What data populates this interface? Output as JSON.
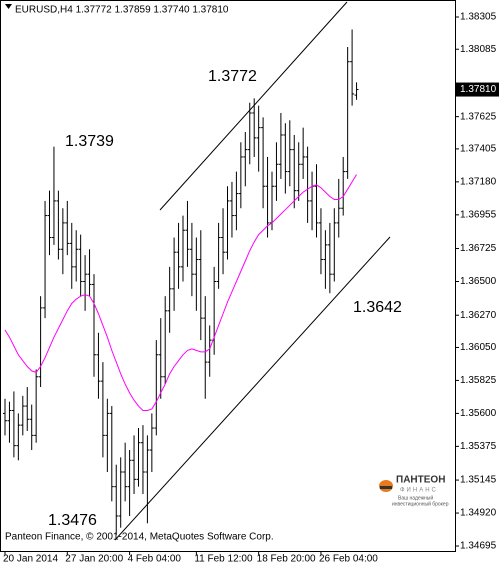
{
  "chart_data": {
    "type": "ohlc",
    "title": "EURUSD,H4  1.37772 1.37859 1.37740 1.37810",
    "footer": "Panteon Finance, © 2001-2014, MetaQuotes Software Corp.",
    "annotations": [
      "1.3772",
      "1.3739",
      "1.3476",
      "1.3642"
    ],
    "logo": {
      "name": "ПАНТЕОН",
      "sub": "ФИНАНС",
      "slogan": [
        "Ваш надежный",
        "инвестиционный брокер"
      ]
    },
    "categories": [
      "20 Jan 2014",
      null,
      null,
      null,
      null,
      null,
      null,
      null,
      null,
      null,
      null,
      null,
      null,
      null,
      "27 Jan 20:00",
      null,
      null,
      null,
      null,
      null,
      null,
      null,
      null,
      null,
      null,
      null,
      null,
      null,
      "4 Feb 04:00",
      null,
      null,
      null,
      null,
      null,
      null,
      null,
      null,
      null,
      null,
      null,
      null,
      null,
      null,
      "11 Feb 12:00",
      null,
      null,
      null,
      null,
      null,
      null,
      null,
      null,
      null,
      null,
      null,
      null,
      null,
      "18 Feb 20:00",
      null,
      null,
      null,
      null,
      null,
      null,
      null,
      null,
      null,
      null,
      null,
      null,
      null,
      "26 Feb 04:00",
      null,
      null,
      null,
      null,
      null,
      null,
      null,
      null
    ],
    "color": "#000000",
    "open": [
      1.356,
      1.3555,
      1.3562,
      1.3538,
      1.3552,
      1.3565,
      1.3556,
      1.3545,
      1.3585,
      1.3632,
      1.3695,
      1.368,
      1.3705,
      1.3672,
      1.369,
      1.3676,
      1.366,
      1.3672,
      1.365,
      1.3655,
      1.3648,
      1.36,
      1.3582,
      1.3545,
      1.356,
      1.351,
      1.349,
      1.352,
      1.351,
      1.3528,
      1.3515,
      1.354,
      1.352,
      1.3535,
      1.355,
      1.36,
      1.3585,
      1.363,
      1.3645,
      1.367,
      1.366,
      1.3685,
      1.3672,
      1.3655,
      1.3665,
      1.3625,
      1.3595,
      1.361,
      1.365,
      1.368,
      1.367,
      1.3705,
      1.3695,
      1.371,
      1.3735,
      1.374,
      1.3765,
      1.3748,
      1.3755,
      1.3715,
      1.369,
      1.3715,
      1.373,
      1.375,
      1.3725,
      1.374,
      1.3712,
      1.373,
      1.3735,
      1.3705,
      1.3715,
      1.369,
      1.3665,
      1.3675,
      1.3655,
      1.369,
      1.37,
      1.3725,
      1.38,
      1.37772
    ],
    "high": [
      1.357,
      1.3568,
      1.3575,
      1.356,
      1.3572,
      1.3578,
      1.3566,
      1.359,
      1.364,
      1.3705,
      1.3712,
      1.3742,
      1.3712,
      1.37,
      1.3705,
      1.369,
      1.3685,
      1.3682,
      1.3668,
      1.3672,
      1.3655,
      1.3615,
      1.3595,
      1.357,
      1.3565,
      1.3525,
      1.353,
      1.354,
      1.3535,
      1.3545,
      1.355,
      1.3552,
      1.3545,
      1.356,
      1.361,
      1.3625,
      1.364,
      1.366,
      1.368,
      1.369,
      1.3695,
      1.3705,
      1.369,
      1.368,
      1.3685,
      1.364,
      1.362,
      1.366,
      1.369,
      1.37,
      1.3715,
      1.3718,
      1.3725,
      1.3745,
      1.3752,
      1.3772,
      1.3775,
      1.377,
      1.3762,
      1.3735,
      1.3725,
      1.3745,
      1.3765,
      1.3758,
      1.376,
      1.375,
      1.3745,
      1.3755,
      1.3742,
      1.3725,
      1.373,
      1.37,
      1.3685,
      1.369,
      1.37,
      1.372,
      1.3735,
      1.381,
      1.3822,
      1.37859
    ],
    "low": [
      1.3545,
      1.354,
      1.353,
      1.3528,
      1.3545,
      1.3548,
      1.3535,
      1.354,
      1.3578,
      1.3625,
      1.3668,
      1.3675,
      1.3665,
      1.3655,
      1.3668,
      1.3645,
      1.365,
      1.364,
      1.363,
      1.364,
      1.3585,
      1.357,
      1.353,
      1.352,
      1.35,
      1.3477,
      1.3482,
      1.35,
      1.349,
      1.3505,
      1.351,
      1.3505,
      1.3485,
      1.352,
      1.3545,
      1.357,
      1.358,
      1.3615,
      1.363,
      1.3645,
      1.365,
      1.366,
      1.364,
      1.363,
      1.361,
      1.357,
      1.3585,
      1.36,
      1.3645,
      1.3655,
      1.3665,
      1.368,
      1.3685,
      1.37,
      1.3715,
      1.373,
      1.3735,
      1.3725,
      1.37,
      1.368,
      1.3685,
      1.3705,
      1.372,
      1.371,
      1.3715,
      1.37,
      1.3705,
      1.372,
      1.369,
      1.3685,
      1.368,
      1.3655,
      1.3645,
      1.3642,
      1.365,
      1.368,
      1.3695,
      1.372,
      1.377,
      1.3774
    ],
    "close": [
      1.3555,
      1.3562,
      1.3538,
      1.3552,
      1.3565,
      1.3556,
      1.3545,
      1.3585,
      1.3632,
      1.3695,
      1.368,
      1.3705,
      1.3672,
      1.369,
      1.3676,
      1.366,
      1.3672,
      1.365,
      1.3655,
      1.3648,
      1.36,
      1.3582,
      1.3545,
      1.356,
      1.351,
      1.349,
      1.352,
      1.351,
      1.3528,
      1.3515,
      1.354,
      1.352,
      1.3535,
      1.355,
      1.36,
      1.3585,
      1.363,
      1.3645,
      1.367,
      1.366,
      1.3685,
      1.3672,
      1.3655,
      1.3665,
      1.3625,
      1.3595,
      1.361,
      1.365,
      1.368,
      1.367,
      1.3705,
      1.3695,
      1.371,
      1.3735,
      1.374,
      1.3765,
      1.3748,
      1.3755,
      1.3715,
      1.369,
      1.3715,
      1.373,
      1.375,
      1.3725,
      1.374,
      1.3712,
      1.373,
      1.3735,
      1.3705,
      1.3715,
      1.369,
      1.3665,
      1.3675,
      1.3655,
      1.369,
      1.37,
      1.3725,
      1.38,
      1.3778,
      1.3781
    ],
    "ma": {
      "color": "#ff00ff",
      "values": [
        1.3617,
        1.3612,
        1.3606,
        1.36,
        1.3596,
        1.3592,
        1.3589,
        1.3588,
        1.3592,
        1.3598,
        1.3605,
        1.3612,
        1.3618,
        1.3624,
        1.363,
        1.3635,
        1.3638,
        1.364,
        1.3641,
        1.364,
        1.3635,
        1.3628,
        1.362,
        1.3612,
        1.3603,
        1.3595,
        1.3587,
        1.358,
        1.3574,
        1.3569,
        1.3565,
        1.3562,
        1.3562,
        1.3563,
        1.3568,
        1.3574,
        1.358,
        1.3587,
        1.3592,
        1.3596,
        1.36,
        1.3603,
        1.3604,
        1.3603,
        1.3602,
        1.3602,
        1.3604,
        1.3612,
        1.362,
        1.3628,
        1.3636,
        1.3643,
        1.365,
        1.3657,
        1.3664,
        1.3671,
        1.3677,
        1.3682,
        1.3685,
        1.3688,
        1.369,
        1.3693,
        1.3696,
        1.3699,
        1.3702,
        1.3705,
        1.3708,
        1.3711,
        1.3713,
        1.3715,
        1.3716,
        1.3714,
        1.3711,
        1.3708,
        1.3706,
        1.3706,
        1.3708,
        1.3713,
        1.3718,
        1.3723
      ]
    },
    "ylim": [
      1.34661,
      1.38421
    ],
    "yticks": [
      1.38305,
      1.38085,
      1.37625,
      1.37405,
      {
        "value": 1.3718,
        "label": "1.37180"
      },
      1.36955,
      1.36725,
      {
        "value": 1.365,
        "label": "1.36500"
      },
      {
        "value": 1.3627,
        "label": "1.36270"
      },
      {
        "value": 1.3605,
        "label": "1.36050"
      },
      1.35825,
      {
        "value": 1.356,
        "label": "1.35600"
      },
      1.35375,
      1.35145,
      {
        "value": 1.3492,
        "label": "1.34920"
      },
      1.34695
    ],
    "last_price": {
      "value": 1.3781,
      "label": "1.37810"
    }
  }
}
